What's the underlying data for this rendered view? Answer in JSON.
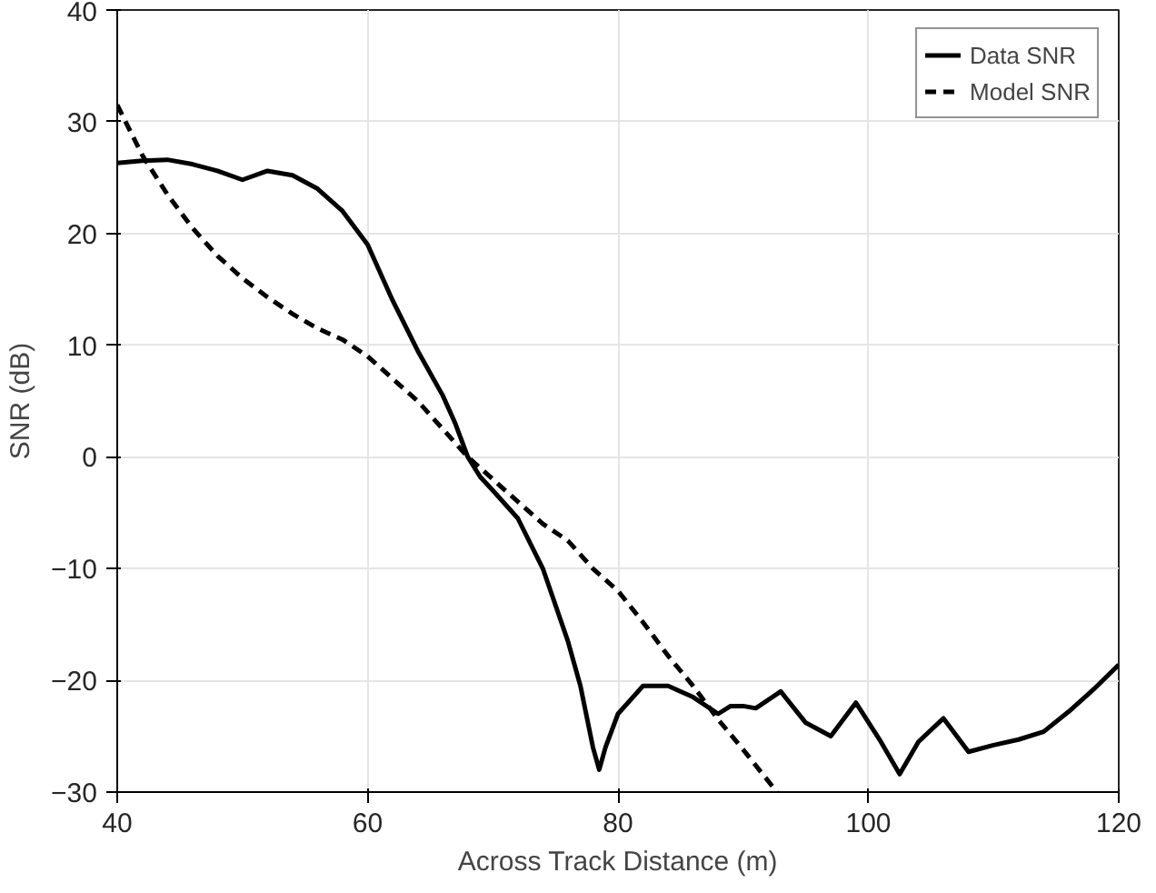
{
  "chart_data": {
    "type": "line",
    "xlabel": "Across Track Distance (m)",
    "ylabel": "SNR (dB)",
    "xlim": [
      40,
      120
    ],
    "ylim": [
      -30,
      40
    ],
    "xticks": [
      40,
      60,
      80,
      100,
      120
    ],
    "yticks": [
      -30,
      -20,
      -10,
      0,
      10,
      20,
      30,
      40
    ],
    "grid": true,
    "legend": "top right",
    "series": [
      {
        "name": "Data SNR",
        "color": "#000000",
        "line_style": "solid",
        "x": [
          40,
          42,
          44,
          46,
          48,
          50,
          52,
          54,
          56,
          58,
          60,
          62,
          64,
          66,
          67,
          68,
          69,
          70,
          72,
          74,
          76,
          77,
          78,
          78.5,
          79,
          80,
          82,
          84,
          86,
          88,
          89,
          90,
          91,
          93,
          95,
          97,
          99,
          101,
          102.5,
          104,
          106,
          108,
          110,
          112,
          114,
          116,
          118,
          120
        ],
        "values": [
          26.3,
          26.5,
          26.6,
          26.2,
          25.6,
          24.8,
          25.6,
          25.2,
          24,
          22,
          19,
          14,
          9.5,
          5.5,
          3,
          0,
          -1.8,
          -3,
          -5.5,
          -10,
          -16.5,
          -20.5,
          -26,
          -28,
          -26,
          -23,
          -20.5,
          -20.5,
          -21.5,
          -23,
          -22.3,
          -22.3,
          -22.5,
          -21,
          -23.8,
          -25,
          -22,
          -25.5,
          -28.4,
          -25.5,
          -23.4,
          -26.4,
          -25.8,
          -25.3,
          -24.6,
          -22.8,
          -20.8,
          -18.6
        ]
      },
      {
        "name": "Model SNR",
        "color": "#000000",
        "line_style": "dashed",
        "x": [
          40,
          42,
          44,
          46,
          48,
          50,
          52,
          54,
          56,
          58,
          60,
          62,
          64,
          66,
          68,
          70,
          72,
          74,
          76,
          78,
          80,
          82,
          84,
          86,
          88,
          90,
          92.7
        ],
        "values": [
          31.5,
          27,
          23.5,
          20.5,
          18,
          16,
          14.3,
          12.8,
          11.5,
          10.5,
          9,
          7,
          5,
          2.5,
          0,
          -2,
          -4,
          -6,
          -7.5,
          -10,
          -12,
          -14.8,
          -17.8,
          -20.5,
          -23.5,
          -26.2,
          -30
        ]
      }
    ]
  }
}
